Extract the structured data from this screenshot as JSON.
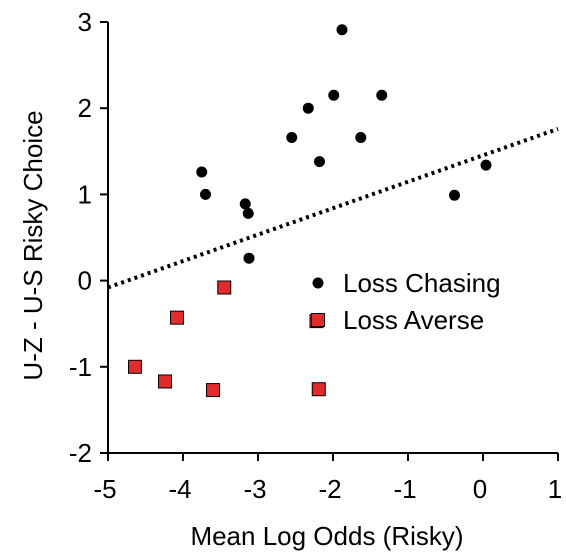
{
  "chart_data": {
    "type": "scatter",
    "title": "",
    "xlabel": "Mean Log Odds (Risky)",
    "ylabel": "U-Z - U-S Risky Choice",
    "xlim": [
      -5,
      1
    ],
    "ylim": [
      -2,
      3
    ],
    "x_ticks": [
      "-5",
      "-4",
      "-3",
      "-2",
      "-1",
      "0",
      "1"
    ],
    "y_ticks": [
      "-2",
      "-1",
      "0",
      "1",
      "2",
      "3"
    ],
    "grid": false,
    "legend_position": "center-right",
    "series": [
      {
        "name": "Loss Chasing",
        "marker": "circle",
        "color": "#000000",
        "points": [
          {
            "x": -3.75,
            "y": 1.26
          },
          {
            "x": -3.7,
            "y": 1.0
          },
          {
            "x": -3.17,
            "y": 0.89
          },
          {
            "x": -3.13,
            "y": 0.78
          },
          {
            "x": -3.12,
            "y": 0.26
          },
          {
            "x": -2.55,
            "y": 1.66
          },
          {
            "x": -2.33,
            "y": 2.0
          },
          {
            "x": -2.18,
            "y": 1.38
          },
          {
            "x": -1.99,
            "y": 2.15
          },
          {
            "x": -1.88,
            "y": 2.91
          },
          {
            "x": -1.63,
            "y": 1.66
          },
          {
            "x": -1.35,
            "y": 2.15
          },
          {
            "x": -0.38,
            "y": 0.99
          },
          {
            "x": 0.04,
            "y": 1.34
          }
        ]
      },
      {
        "name": "Loss Averse",
        "marker": "square",
        "color": "#e32b2b",
        "points": [
          {
            "x": -4.64,
            "y": -1.0
          },
          {
            "x": -4.24,
            "y": -1.17
          },
          {
            "x": -4.08,
            "y": -0.43
          },
          {
            "x": -3.6,
            "y": -1.27
          },
          {
            "x": -3.45,
            "y": -0.08
          },
          {
            "x": -2.22,
            "y": -0.47
          },
          {
            "x": -2.19,
            "y": -1.26
          }
        ]
      }
    ],
    "trendline": {
      "style": "dotted",
      "color": "#000000",
      "from": {
        "x": -5,
        "y": -0.08
      },
      "to": {
        "x": 1,
        "y": 1.76
      }
    }
  }
}
